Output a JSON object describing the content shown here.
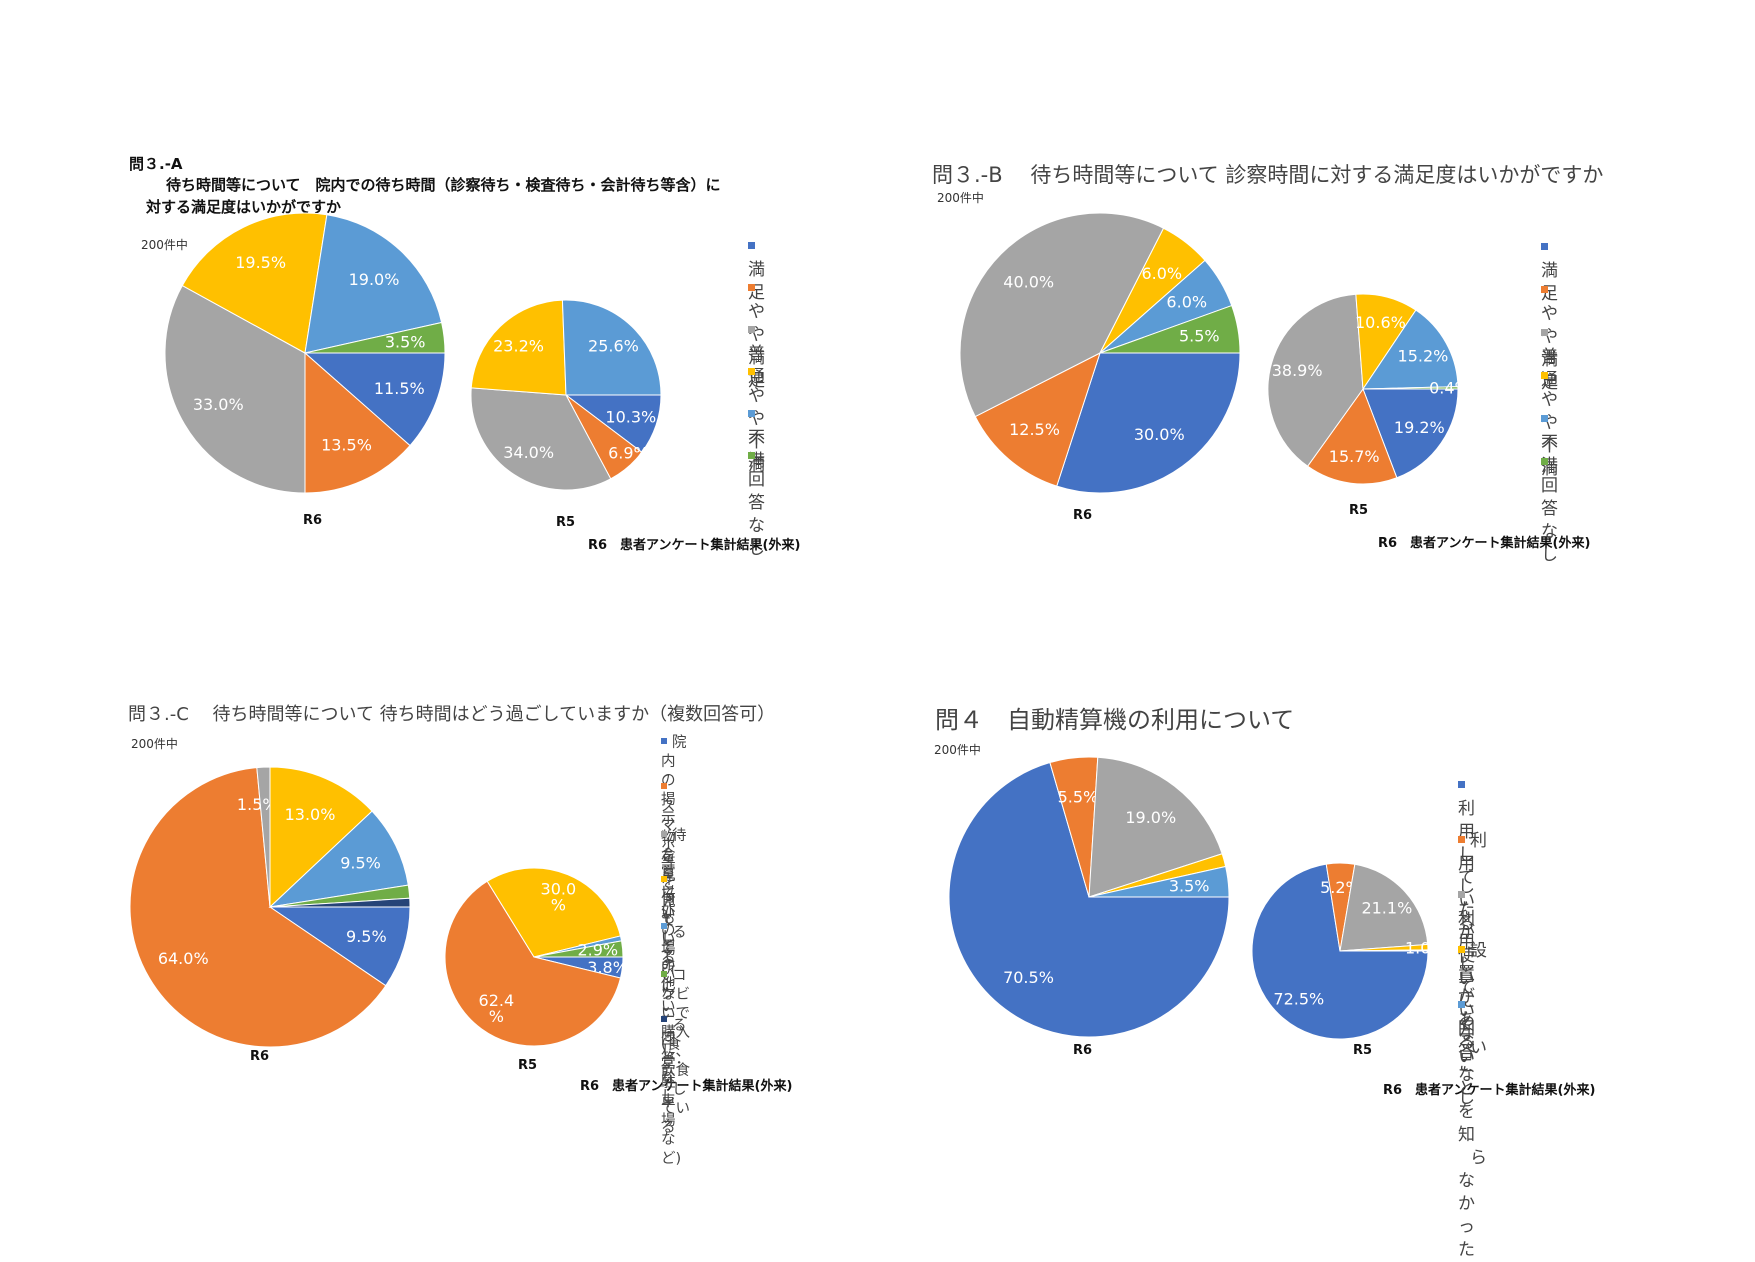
{
  "colors": {
    "blue": "#4472C4",
    "orange": "#ED7D31",
    "gray": "#A5A5A5",
    "gold": "#FFC000",
    "lightblue": "#5B9BD5",
    "green": "#70AD47",
    "navy": "#264478"
  },
  "panels": [
    {
      "id": "q3a",
      "title_prefix": "問３.-A",
      "title_line1": "待ち時間等について　院内での待ち時間（診察待ち・検査待ち・会計待ち等含）に",
      "title_line2": "対する満足度はいかがですか",
      "count_label": "200件中",
      "footer": "R6　患者アンケート集計結果(外来)",
      "legend": [
        {
          "label": "満足",
          "color": "#4472C4"
        },
        {
          "label": "やや満足",
          "color": "#ED7D31"
        },
        {
          "label": "普通",
          "color": "#A5A5A5"
        },
        {
          "label": "やや不満",
          "color": "#FFC000"
        },
        {
          "label": "不満",
          "color": "#5B9BD5"
        },
        {
          "label": "回答なし",
          "color": "#70AD47"
        }
      ]
    },
    {
      "id": "q3b",
      "title": "問３.-B　 待ち時間等について  診察時間に対する満足度はいかがですか",
      "count_label": "200件中",
      "footer": "R6　患者アンケート集計結果(外来)",
      "legend": [
        {
          "label": "満足",
          "color": "#4472C4"
        },
        {
          "label": "やや満足",
          "color": "#ED7D31"
        },
        {
          "label": "普通",
          "color": "#A5A5A5"
        },
        {
          "label": "やや不満",
          "color": "#FFC000"
        },
        {
          "label": "不満",
          "color": "#5B9BD5"
        },
        {
          "label": "回答なし",
          "color": "#70AD47"
        }
      ]
    },
    {
      "id": "q3c",
      "title": "問３.-C　 待ち時間等について  待ち時間はどう過ごしていますか（複数回答可）",
      "count_label": "200件中",
      "footer": "R6　患者アンケート集計結果(外来)",
      "legend": [
        {
          "line1": "院内の掲示物を見てい",
          "line2": "る",
          "color": "#4472C4"
        },
        {
          "line1": "スマホ等を見ている",
          "line2": "",
          "color": "#ED7D31"
        },
        {
          "line1": "待合室以外の場所にい",
          "line2": "る(食堂･駐車場など)",
          "color": "#A5A5A5"
        },
        {
          "line1": "何もしていない",
          "line2": "",
          "color": "#FFC000"
        },
        {
          "line1": "その他",
          "line2": "",
          "color": "#5B9BD5"
        },
        {
          "line1": "コンビニで購入し、飲食",
          "line2": "している",
          "color": "#70AD47"
        },
        {
          "line1": "回答なし",
          "line2": "",
          "color": "#264478"
        }
      ]
    },
    {
      "id": "q4",
      "title": "問４　自動精算機の利用について",
      "count_label": "200件中",
      "footer": "R6　患者アンケート集計結果(外来)",
      "legend": [
        {
          "line1": "利用している",
          "line2": "",
          "color": "#4472C4"
        },
        {
          "line1": "利用したが使いにく",
          "line2": "い",
          "color": "#ED7D31"
        },
        {
          "line1": "利用していない",
          "line2": "",
          "color": "#A5A5A5"
        },
        {
          "line1": "設置があることを知",
          "line2": "らなかった",
          "color": "#FFC000"
        },
        {
          "line1": "回答なし",
          "line2": "",
          "color": "#5B9BD5"
        }
      ]
    }
  ],
  "chart_data": [
    {
      "type": "pie",
      "panel": "q3a",
      "name": "R6",
      "slices": [
        {
          "label": "満足",
          "value": 11.5,
          "text": "11.5%"
        },
        {
          "label": "やや満足",
          "value": 13.5,
          "text": "13.5%"
        },
        {
          "label": "普通",
          "value": 33.0,
          "text": "33.0%"
        },
        {
          "label": "やや不満",
          "value": 19.5,
          "text": "19.5%"
        },
        {
          "label": "不満",
          "value": 19.0,
          "text": "19.0%"
        },
        {
          "label": "回答なし",
          "value": 3.5,
          "text": "3.5%"
        }
      ]
    },
    {
      "type": "pie",
      "panel": "q3a",
      "name": "R5",
      "slices": [
        {
          "label": "満足",
          "value": 10.3,
          "text": "10.3%"
        },
        {
          "label": "やや満足",
          "value": 6.9,
          "text": "6.9%"
        },
        {
          "label": "普通",
          "value": 34.0,
          "text": "34.0%"
        },
        {
          "label": "やや不満",
          "value": 23.2,
          "text": "23.2%"
        },
        {
          "label": "不満",
          "value": 25.6,
          "text": "25.6%"
        },
        {
          "label": "回答なし",
          "value": 0,
          "text": ""
        }
      ]
    },
    {
      "type": "pie",
      "panel": "q3b",
      "name": "R6",
      "slices": [
        {
          "label": "満足",
          "value": 30.0,
          "text": "30.0%"
        },
        {
          "label": "やや満足",
          "value": 12.5,
          "text": "12.5%"
        },
        {
          "label": "普通",
          "value": 40.0,
          "text": "40.0%"
        },
        {
          "label": "やや不満",
          "value": 6.0,
          "text": "6.0%"
        },
        {
          "label": "不満",
          "value": 6.0,
          "text": "6.0%"
        },
        {
          "label": "回答なし",
          "value": 5.5,
          "text": "5.5%"
        }
      ]
    },
    {
      "type": "pie",
      "panel": "q3b",
      "name": "R5",
      "slices": [
        {
          "label": "満足",
          "value": 19.2,
          "text": "19.2%"
        },
        {
          "label": "やや満足",
          "value": 15.7,
          "text": "15.7%"
        },
        {
          "label": "普通",
          "value": 38.9,
          "text": "38.9%"
        },
        {
          "label": "やや不満",
          "value": 10.6,
          "text": "10.6%"
        },
        {
          "label": "不満",
          "value": 15.2,
          "text": "15.2%"
        },
        {
          "label": "回答なし",
          "value": 0.4,
          "text": "0.4%"
        }
      ]
    },
    {
      "type": "pie",
      "panel": "q3c",
      "name": "R6",
      "slices": [
        {
          "label": "院内の掲示物を見ている",
          "value": 9.5,
          "text": "9.5%"
        },
        {
          "label": "スマホ等を見ている",
          "value": 64.0,
          "text": "64.0%"
        },
        {
          "label": "待合室以外の場所にいる(食堂･駐車場など)",
          "value": 1.5,
          "text": "1.5%"
        },
        {
          "label": "何もしていない",
          "value": 13.0,
          "text": "13.0%"
        },
        {
          "label": "その他",
          "value": 9.5,
          "text": "9.5%"
        },
        {
          "label": "コンビニで購入し、飲食している",
          "value": 1.5,
          "text": ""
        },
        {
          "label": "回答なし",
          "value": 1.0,
          "text": ""
        }
      ]
    },
    {
      "type": "pie",
      "panel": "q3c",
      "name": "R5",
      "slices": [
        {
          "label": "院内の掲示物を見ている",
          "value": 3.8,
          "text": "3.8%"
        },
        {
          "label": "スマホ等を見ている",
          "value": 62.4,
          "text": "62.4 %"
        },
        {
          "label": "待合室以外の場所にいる(食堂･駐車場など)",
          "value": 0,
          "text": ""
        },
        {
          "label": "何もしていない",
          "value": 30.0,
          "text": "30.0 %"
        },
        {
          "label": "その他",
          "value": 0.9,
          "text": ""
        },
        {
          "label": "コンビニで購入し、飲食している",
          "value": 2.9,
          "text": "2.9%"
        },
        {
          "label": "回答なし",
          "value": 0,
          "text": ""
        }
      ]
    },
    {
      "type": "pie",
      "panel": "q4",
      "name": "R6",
      "slices": [
        {
          "label": "利用している",
          "value": 70.5,
          "text": "70.5%"
        },
        {
          "label": "利用したが使いにくい",
          "value": 5.5,
          "text": "5.5%"
        },
        {
          "label": "利用していない",
          "value": 19.0,
          "text": "19.0%"
        },
        {
          "label": "設置があることを知らなかった",
          "value": 1.5,
          "text": ""
        },
        {
          "label": "回答なし",
          "value": 3.5,
          "text": "3.5%"
        }
      ]
    },
    {
      "type": "pie",
      "panel": "q4",
      "name": "R5",
      "slices": [
        {
          "label": "利用している",
          "value": 72.5,
          "text": "72.5%"
        },
        {
          "label": "利用したが使いにくい",
          "value": 5.2,
          "text": "5.2%"
        },
        {
          "label": "利用していない",
          "value": 21.1,
          "text": "21.1%"
        },
        {
          "label": "設置があることを知らなかった",
          "value": 1.0,
          "text": "1.0%"
        },
        {
          "label": "回答なし",
          "value": 0.2,
          "text": ""
        }
      ]
    }
  ]
}
